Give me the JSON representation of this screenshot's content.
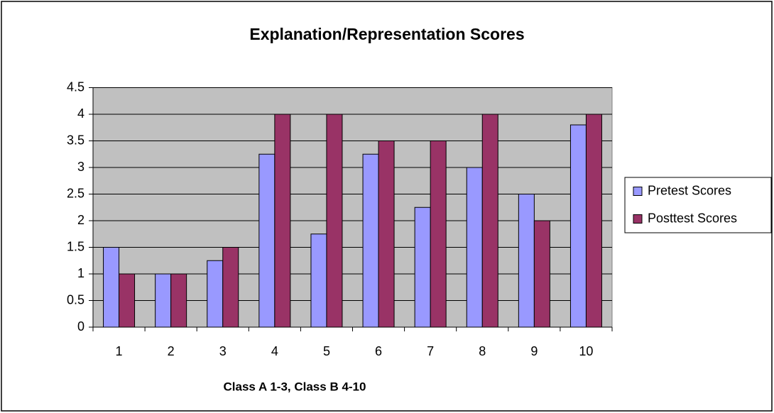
{
  "chart_data": {
    "type": "bar",
    "title": "Explanation/Representation Scores",
    "x_label": "Class A 1-3, Class B 4-10",
    "categories": [
      "1",
      "2",
      "3",
      "4",
      "5",
      "6",
      "7",
      "8",
      "9",
      "10"
    ],
    "series": [
      {
        "name": "Pretest Scores",
        "color": "#9999ff",
        "values": [
          1.5,
          1,
          1.25,
          3.25,
          1.75,
          3.25,
          2.25,
          3,
          2.5,
          3.8
        ]
      },
      {
        "name": "Posttest Scores",
        "color": "#993366",
        "values": [
          1,
          1,
          1.5,
          4,
          4,
          3.5,
          3.5,
          4,
          2,
          4
        ]
      }
    ],
    "ylim": [
      0,
      4.5
    ],
    "yticks": [
      0,
      0.5,
      1,
      1.5,
      2,
      2.5,
      3,
      3.5,
      4,
      4.5
    ],
    "grid": true,
    "legend": "right",
    "plot_background": "#c0c0c0"
  }
}
